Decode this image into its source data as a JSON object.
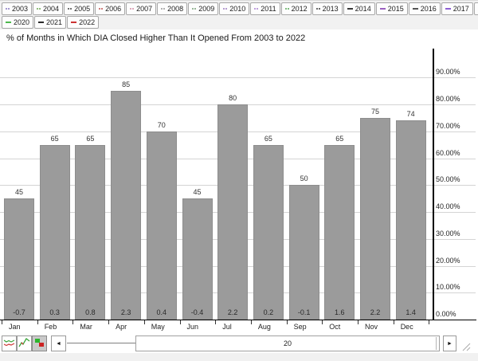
{
  "title": "% of Months in Which DIA Closed Higher Than It Opened From 2003 to 2022",
  "year_buttons": [
    {
      "label": "2003",
      "marker": "dots",
      "color": "#8878c3"
    },
    {
      "label": "2004",
      "marker": "dots",
      "color": "#6aa84f"
    },
    {
      "label": "2005",
      "marker": "dots",
      "color": "#444444"
    },
    {
      "label": "2006",
      "marker": "dots",
      "color": "#c0504d"
    },
    {
      "label": "2007",
      "marker": "dots",
      "color": "#d48ca6"
    },
    {
      "label": "2008",
      "marker": "dots",
      "color": "#999999"
    },
    {
      "label": "2009",
      "marker": "dots",
      "color": "#76a176"
    },
    {
      "label": "2010",
      "marker": "dots",
      "color": "#9e7cc1"
    },
    {
      "label": "2011",
      "marker": "dots",
      "color": "#a97fd1"
    },
    {
      "label": "2012",
      "marker": "dots",
      "color": "#55a855"
    },
    {
      "label": "2013",
      "marker": "dots",
      "color": "#3a3a3a"
    },
    {
      "label": "2014",
      "marker": "dash",
      "color": "#3a3a3a"
    },
    {
      "label": "2015",
      "marker": "dash",
      "color": "#9a5fc0"
    },
    {
      "label": "2016",
      "marker": "dash",
      "color": "#555555"
    },
    {
      "label": "2017",
      "marker": "dash",
      "color": "#8d5fd3"
    },
    {
      "label": "2018",
      "marker": "dash",
      "color": "#4a4a4a"
    },
    {
      "label": "2019",
      "marker": "dash",
      "color": "#b44fd0"
    },
    {
      "label": "2020",
      "marker": "dash",
      "color": "#4db84d"
    },
    {
      "label": "2021",
      "marker": "dash",
      "color": "#2a2a2a"
    },
    {
      "label": "2022",
      "marker": "dash",
      "color": "#cc3333"
    }
  ],
  "chart_data": {
    "type": "bar",
    "title": "% of Months in Which DIA Closed Higher Than It Opened From 2003 to 2022",
    "categories": [
      "Jan",
      "Feb",
      "Mar",
      "Apr",
      "May",
      "Jun",
      "Jul",
      "Aug",
      "Sep",
      "Oct",
      "Nov",
      "Dec"
    ],
    "values": [
      45,
      65,
      65,
      85,
      70,
      45,
      80,
      65,
      50,
      65,
      75,
      74
    ],
    "bar_bottom_labels": [
      "-0.7",
      "0.3",
      "0.8",
      "2.3",
      "0.4",
      "-0.4",
      "2.2",
      "0.2",
      "-0.1",
      "1.6",
      "2.2",
      "1.4"
    ],
    "xlabel": "",
    "ylabel": "",
    "ylim": [
      0,
      100
    ],
    "y_axis_side": "right",
    "y_ticks": [
      "0.00%",
      "10.00%",
      "20.00%",
      "30.00%",
      "40.00%",
      "50.00%",
      "60.00%",
      "70.00%",
      "80.00%",
      "90.00%"
    ],
    "grid": true,
    "legend": "none",
    "bar_color": "#9b9b9b",
    "gridline_color": "#d4d4d4"
  },
  "toolbar": {
    "icons": [
      {
        "name": "line-chart-icon",
        "selected": false
      },
      {
        "name": "trend-chart-icon",
        "selected": false
      },
      {
        "name": "bar-chart-icon",
        "selected": true
      }
    ],
    "scrollbar": {
      "value": "20",
      "left_arrow": "◄",
      "right_arrow": "►"
    }
  }
}
